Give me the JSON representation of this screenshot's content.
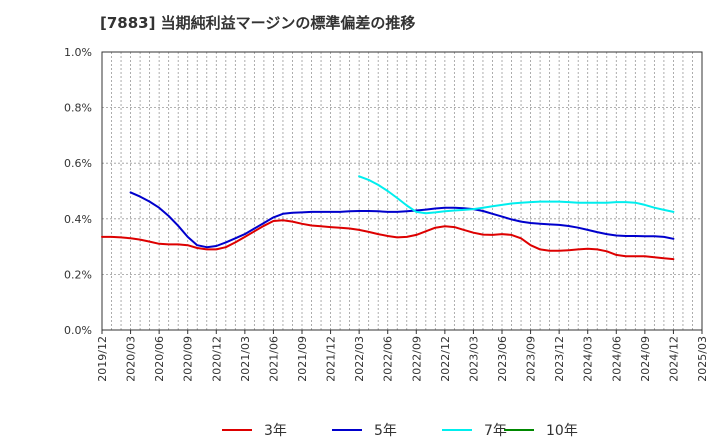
{
  "chart_data": {
    "type": "line",
    "title": "[7883]  当期純利益マージンの標準偏差の推移",
    "x_ticks": [
      "2019/12",
      "2020/03",
      "2020/06",
      "2020/09",
      "2020/12",
      "2021/03",
      "2021/06",
      "2021/09",
      "2021/12",
      "2022/03",
      "2022/06",
      "2022/09",
      "2022/12",
      "2023/03",
      "2023/06",
      "2023/09",
      "2023/12",
      "2024/03",
      "2024/06",
      "2024/09",
      "2024/12",
      "2025/03"
    ],
    "y_ticks": [
      "0.0%",
      "0.2%",
      "0.4%",
      "0.6%",
      "0.8%",
      "1.0%"
    ],
    "ylim": [
      0,
      1.0
    ],
    "y_unit": "%",
    "grid": true,
    "legend_position": "bottom",
    "series": [
      {
        "name": "3年",
        "color": "#dd0000",
        "x": [
          "2019/12",
          "2020/01",
          "2020/02",
          "2020/03",
          "2020/04",
          "2020/05",
          "2020/06",
          "2020/07",
          "2020/08",
          "2020/09",
          "2020/10",
          "2020/11",
          "2020/12",
          "2021/01",
          "2021/02",
          "2021/03",
          "2021/04",
          "2021/05",
          "2021/06",
          "2021/07",
          "2021/08",
          "2021/09",
          "2021/10",
          "2021/11",
          "2021/12",
          "2022/01",
          "2022/02",
          "2022/03",
          "2022/04",
          "2022/05",
          "2022/06",
          "2022/07",
          "2022/08",
          "2022/09",
          "2022/10",
          "2022/11",
          "2022/12",
          "2023/01",
          "2023/02",
          "2023/03",
          "2023/04",
          "2023/05",
          "2023/06",
          "2023/07",
          "2023/08",
          "2023/09",
          "2023/10",
          "2023/11",
          "2023/12",
          "2024/01",
          "2024/02",
          "2024/03",
          "2024/04",
          "2024/05",
          "2024/06",
          "2024/07",
          "2024/08",
          "2024/09",
          "2024/10",
          "2024/11",
          "2024/12"
        ],
        "values": [
          0.335,
          0.335,
          0.333,
          0.33,
          0.325,
          0.318,
          0.31,
          0.308,
          0.308,
          0.305,
          0.295,
          0.29,
          0.29,
          0.298,
          0.315,
          0.335,
          0.355,
          0.375,
          0.392,
          0.395,
          0.39,
          0.382,
          0.376,
          0.373,
          0.37,
          0.368,
          0.365,
          0.36,
          0.353,
          0.345,
          0.338,
          0.333,
          0.335,
          0.342,
          0.355,
          0.368,
          0.373,
          0.37,
          0.36,
          0.35,
          0.343,
          0.342,
          0.345,
          0.342,
          0.33,
          0.305,
          0.29,
          0.285,
          0.285,
          0.287,
          0.29,
          0.292,
          0.29,
          0.283,
          0.27,
          0.265,
          0.265,
          0.265,
          0.262,
          0.258,
          0.255
        ]
      },
      {
        "name": "5年",
        "color": "#0000cc",
        "x": [
          "2020/03",
          "2020/04",
          "2020/05",
          "2020/06",
          "2020/07",
          "2020/08",
          "2020/09",
          "2020/10",
          "2020/11",
          "2020/12",
          "2021/01",
          "2021/02",
          "2021/03",
          "2021/04",
          "2021/05",
          "2021/06",
          "2021/07",
          "2021/08",
          "2021/09",
          "2021/10",
          "2021/11",
          "2021/12",
          "2022/01",
          "2022/02",
          "2022/03",
          "2022/04",
          "2022/05",
          "2022/06",
          "2022/07",
          "2022/08",
          "2022/09",
          "2022/10",
          "2022/11",
          "2022/12",
          "2023/01",
          "2023/02",
          "2023/03",
          "2023/04",
          "2023/05",
          "2023/06",
          "2023/07",
          "2023/08",
          "2023/09",
          "2023/10",
          "2023/11",
          "2023/12",
          "2024/01",
          "2024/02",
          "2024/03",
          "2024/04",
          "2024/05",
          "2024/06",
          "2024/07",
          "2024/08",
          "2024/09",
          "2024/10",
          "2024/11",
          "2024/12"
        ],
        "values": [
          0.495,
          0.48,
          0.462,
          0.44,
          0.41,
          0.375,
          0.335,
          0.305,
          0.298,
          0.302,
          0.315,
          0.33,
          0.345,
          0.365,
          0.385,
          0.405,
          0.418,
          0.422,
          0.423,
          0.425,
          0.425,
          0.425,
          0.425,
          0.427,
          0.428,
          0.428,
          0.427,
          0.425,
          0.425,
          0.427,
          0.43,
          0.433,
          0.437,
          0.44,
          0.44,
          0.438,
          0.435,
          0.428,
          0.418,
          0.408,
          0.398,
          0.39,
          0.385,
          0.382,
          0.38,
          0.378,
          0.374,
          0.368,
          0.36,
          0.352,
          0.345,
          0.34,
          0.338,
          0.338,
          0.337,
          0.337,
          0.335,
          0.328
        ]
      },
      {
        "name": "7年",
        "color": "#00eeee",
        "x": [
          "2022/03",
          "2022/04",
          "2022/05",
          "2022/06",
          "2022/07",
          "2022/08",
          "2022/09",
          "2022/10",
          "2022/11",
          "2022/12",
          "2023/01",
          "2023/02",
          "2023/03",
          "2023/04",
          "2023/05",
          "2023/06",
          "2023/07",
          "2023/08",
          "2023/09",
          "2023/10",
          "2023/11",
          "2023/12",
          "2024/01",
          "2024/02",
          "2024/03",
          "2024/04",
          "2024/05",
          "2024/06",
          "2024/07",
          "2024/08",
          "2024/09",
          "2024/10",
          "2024/11",
          "2024/12"
        ],
        "values": [
          0.553,
          0.54,
          0.522,
          0.5,
          0.475,
          0.448,
          0.425,
          0.42,
          0.423,
          0.427,
          0.43,
          0.432,
          0.435,
          0.44,
          0.445,
          0.45,
          0.455,
          0.458,
          0.46,
          0.462,
          0.462,
          0.462,
          0.46,
          0.458,
          0.458,
          0.458,
          0.458,
          0.46,
          0.46,
          0.458,
          0.45,
          0.44,
          0.432,
          0.425
        ]
      },
      {
        "name": "10年",
        "color": "#008800",
        "x": [],
        "values": []
      }
    ]
  }
}
